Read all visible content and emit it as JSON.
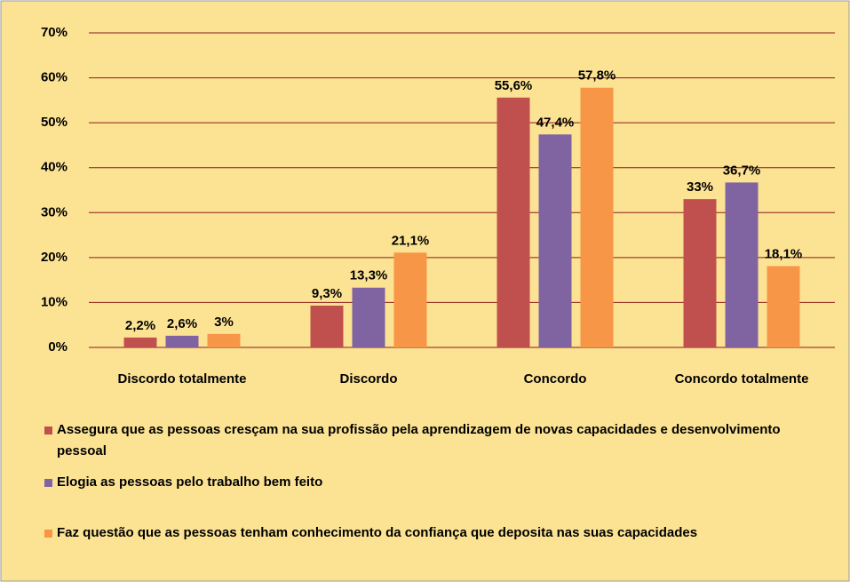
{
  "chart_data": {
    "type": "bar",
    "categories": [
      "Discordo totalmente",
      "Discordo",
      "Concordo",
      "Concordo totalmente"
    ],
    "series": [
      {
        "name": "Assegura que as pessoas cresçam na sua profissão pela aprendizagem de novas capacidades e desenvolvimento pessoal",
        "color": "#C0504D",
        "values": [
          2.2,
          9.3,
          55.6,
          33
        ],
        "value_labels": [
          "2,2%",
          "9,3%",
          "55,6%",
          "33%"
        ]
      },
      {
        "name": "Elogia as pessoas pelo trabalho bem feito",
        "color": "#8064A2",
        "values": [
          2.6,
          13.3,
          47.4,
          36.7
        ],
        "value_labels": [
          "2,6%",
          "13,3%",
          "47,4%",
          "36,7%"
        ]
      },
      {
        "name": "Faz questão que as pessoas tenham conhecimento da confiança que deposita nas suas capacidades",
        "color": "#F79646",
        "values": [
          3,
          21.1,
          57.8,
          18.1
        ],
        "value_labels": [
          "3%",
          "21,1%",
          "57,8%",
          "18,1%"
        ]
      }
    ],
    "ylim": [
      0,
      70
    ],
    "yticks": [
      {
        "value": 0,
        "label": "0%"
      },
      {
        "value": 10,
        "label": "10%"
      },
      {
        "value": 20,
        "label": "20%"
      },
      {
        "value": 30,
        "label": "30%"
      },
      {
        "value": 40,
        "label": "40%"
      },
      {
        "value": 50,
        "label": "50%"
      },
      {
        "value": 60,
        "label": "60%"
      },
      {
        "value": 70,
        "label": "70%"
      }
    ],
    "grid": true,
    "grid_color": "#8B1A1A",
    "background": "#FCE394",
    "legend": "bottom"
  }
}
